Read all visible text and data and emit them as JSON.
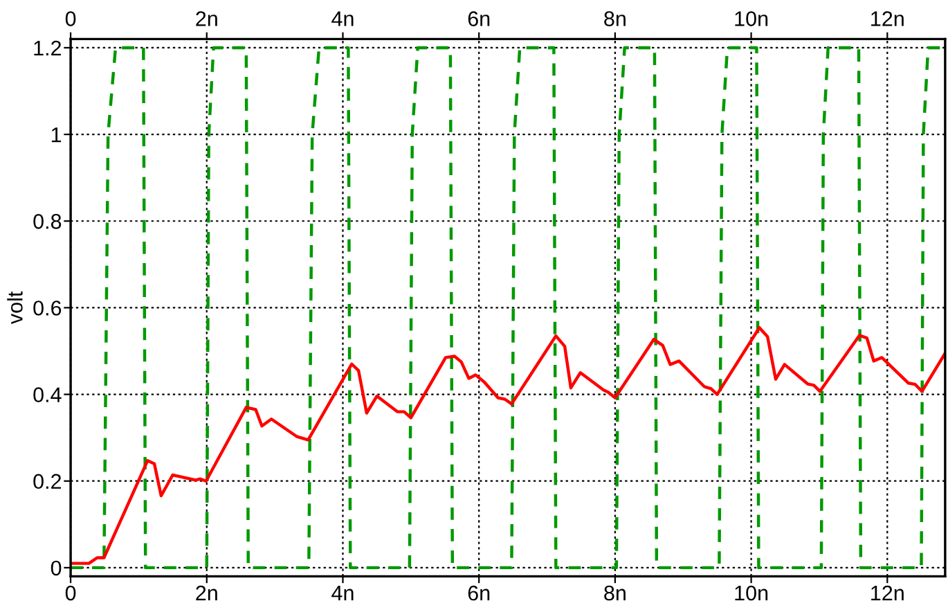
{
  "chart_data": {
    "type": "line",
    "ylabel": "volt",
    "xlim": [
      0,
      12.85
    ],
    "ylim": [
      -0.02,
      1.22
    ],
    "xticks": [
      0,
      {
        "value": 2,
        "label": "2n"
      },
      {
        "value": 4,
        "label": "4n"
      },
      {
        "value": 6,
        "label": "6n"
      },
      {
        "value": 8,
        "label": "8n"
      },
      {
        "value": 10,
        "label": "10n"
      },
      {
        "value": 12,
        "label": "12n"
      }
    ],
    "x2lim": [
      0,
      12.85
    ],
    "x2ticks": [
      0,
      {
        "value": 2,
        "label": "2n"
      },
      {
        "value": 4,
        "label": "4n"
      },
      {
        "value": 6,
        "label": "6n"
      },
      {
        "value": 8,
        "label": "8n"
      },
      {
        "value": 10,
        "label": "10n"
      },
      {
        "value": 12,
        "label": "12n"
      }
    ],
    "yticks": [
      0,
      0.2,
      0.4,
      0.6,
      0.8,
      1,
      1.2
    ],
    "grid": true,
    "series": [
      {
        "color": "#009900",
        "line_style": "dashed",
        "x": [
          0,
          0.49,
          0.55,
          0.66,
          1.07,
          1.1,
          2.0,
          2.03,
          2.1,
          2.58,
          2.61,
          3.5,
          3.55,
          3.65,
          4.08,
          4.11,
          4.98,
          5.02,
          5.1,
          5.58,
          5.61,
          6.48,
          6.52,
          6.6,
          7.1,
          7.13,
          8.02,
          8.06,
          8.14,
          8.58,
          8.61,
          9.53,
          9.57,
          9.65,
          10.08,
          10.11,
          11.03,
          11.06,
          11.13,
          11.58,
          11.61,
          12.5,
          12.53,
          12.6,
          12.85
        ],
        "values": [
          0,
          0,
          1.0,
          1.2,
          1.2,
          0,
          0,
          1.0,
          1.2,
          1.2,
          0,
          0,
          1.0,
          1.2,
          1.2,
          0,
          0,
          1.0,
          1.2,
          1.2,
          0,
          0,
          1.0,
          1.2,
          1.2,
          0,
          0,
          1.0,
          1.2,
          1.2,
          0,
          0,
          1.0,
          1.2,
          1.2,
          0,
          0,
          1.0,
          1.2,
          1.2,
          0,
          0,
          1.0,
          1.2,
          1.2
        ]
      },
      {
        "color": "#ff0000",
        "line_style": "solid",
        "x": [
          0,
          0.27,
          0.39,
          0.49,
          1.13,
          1.23,
          1.33,
          1.5,
          1.84,
          1.9,
          1.99,
          2.58,
          2.72,
          2.81,
          2.95,
          3.32,
          3.49,
          4.13,
          4.23,
          4.35,
          4.5,
          4.8,
          4.9,
          5.0,
          5.51,
          5.64,
          5.74,
          5.85,
          5.95,
          6.08,
          6.28,
          6.38,
          6.48,
          7.13,
          7.26,
          7.35,
          7.49,
          7.83,
          7.9,
          8.0,
          8.57,
          8.7,
          8.81,
          8.94,
          9.31,
          9.41,
          9.5,
          10.12,
          10.24,
          10.36,
          10.49,
          10.83,
          10.92,
          11.01,
          11.59,
          11.7,
          11.8,
          11.92,
          12.31,
          12.41,
          12.51,
          12.85
        ],
        "values": [
          0.01,
          0.01,
          0.023,
          0.023,
          0.247,
          0.24,
          0.166,
          0.214,
          0.202,
          0.205,
          0.2,
          0.37,
          0.365,
          0.327,
          0.343,
          0.303,
          0.295,
          0.47,
          0.455,
          0.357,
          0.396,
          0.36,
          0.36,
          0.346,
          0.485,
          0.488,
          0.475,
          0.437,
          0.445,
          0.428,
          0.392,
          0.389,
          0.378,
          0.535,
          0.511,
          0.415,
          0.45,
          0.41,
          0.405,
          0.392,
          0.527,
          0.513,
          0.469,
          0.477,
          0.418,
          0.413,
          0.4,
          0.554,
          0.533,
          0.435,
          0.469,
          0.424,
          0.421,
          0.407,
          0.536,
          0.53,
          0.477,
          0.485,
          0.426,
          0.423,
          0.407,
          0.495
        ]
      }
    ]
  }
}
